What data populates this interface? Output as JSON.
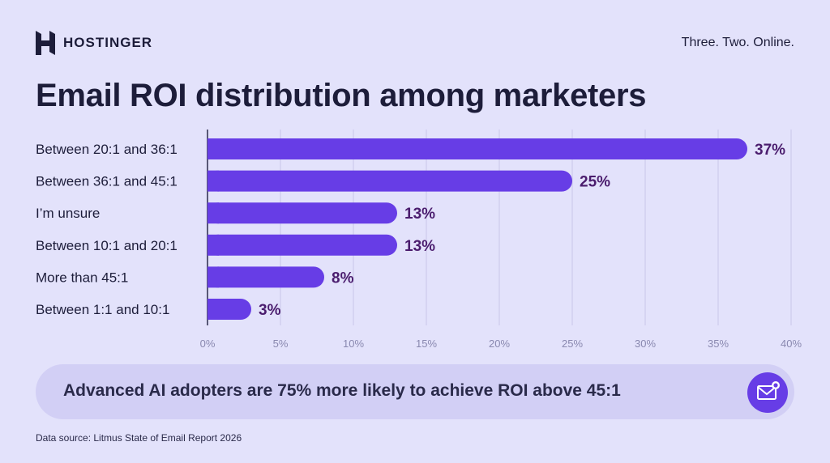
{
  "header": {
    "brand": "HOSTINGER",
    "tagline": "Three. Two. Online."
  },
  "colors": {
    "background": "#e3e2fb",
    "bar": "#673de6",
    "value_label": "#4b1d6e",
    "grid": "#c9c7ea",
    "banner": "#d2cff5"
  },
  "chart_data": {
    "type": "bar",
    "orientation": "horizontal",
    "title": "Email ROI distribution among marketers",
    "categories": [
      "Between 20:1 and 36:1",
      "Between 36:1 and 45:1",
      "I’m unsure",
      "Between 10:1 and 20:1",
      "More than 45:1",
      "Between 1:1 and 10:1"
    ],
    "values": [
      37,
      25,
      13,
      13,
      8,
      3
    ],
    "value_labels": [
      "37%",
      "25%",
      "13%",
      "13%",
      "8%",
      "3%"
    ],
    "x_ticks": [
      "0%",
      "5%",
      "10%",
      "15%",
      "20%",
      "25%",
      "30%",
      "35%",
      "40%"
    ],
    "xlim": [
      0,
      40
    ],
    "grid": true,
    "legend": "none"
  },
  "banner": {
    "text": "Advanced AI adopters are 75% more likely to achieve ROI above 45:1",
    "icon": "email-icon"
  },
  "footer": {
    "source": "Data source: Litmus State of Email Report 2026"
  }
}
